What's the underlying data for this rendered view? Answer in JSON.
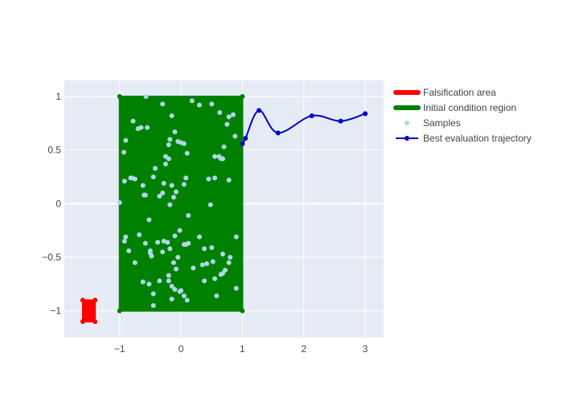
{
  "chart_data": {
    "type": "scatter",
    "xlim": [
      -1.9,
      3.3
    ],
    "ylim": [
      -1.25,
      1.15
    ],
    "x_ticks": [
      -1,
      0,
      1,
      2,
      3
    ],
    "x_tick_labels": [
      "−1",
      "0",
      "1",
      "2",
      "3"
    ],
    "y_ticks": [
      -1,
      -0.5,
      0,
      0.5,
      1
    ],
    "y_tick_labels": [
      "−1",
      "−0.5",
      "0",
      "0.5",
      "1"
    ],
    "grid": true,
    "legend_position": "top-right",
    "colors": {
      "plot_bg": "#e5ecf6",
      "grid": "#ffffff",
      "falsification": "#ff0000",
      "initial": "#008000",
      "samples": "#add8e6",
      "trajectory": "#0000cd"
    },
    "legend": [
      {
        "label": "Falsification area",
        "kind": "region",
        "color": "#ff0000"
      },
      {
        "label": "Initial condition region",
        "kind": "region",
        "color": "#008000"
      },
      {
        "label": "Samples",
        "kind": "marker",
        "color": "#add8e6"
      },
      {
        "label": "Best evaluation trajectory",
        "kind": "line",
        "color": "#0000cd"
      }
    ],
    "falsification_area": {
      "x": [
        -1.6,
        -1.4,
        -1.4,
        -1.6,
        -1.6
      ],
      "y": [
        -1.1,
        -1.1,
        -0.9,
        -0.9,
        -1.1
      ]
    },
    "initial_region": {
      "x": [
        -1,
        1,
        1,
        -1,
        -1
      ],
      "y": [
        -1,
        -1,
        1,
        1,
        -1
      ]
    },
    "samples": {
      "x": [
        -0.57,
        0.18,
        -0.9,
        -0.78,
        -0.15,
        -0.3,
        0.3,
        0.5,
        0.63,
        0.85,
        0.78,
        -0.7,
        -0.65,
        -0.55,
        -0.82,
        -0.93,
        -0.18,
        -0.1,
        -0.05,
        0.0,
        0.05,
        0.1,
        -0.2,
        -0.25,
        0.55,
        0.7,
        0.75,
        0.65,
        -0.92,
        -0.8,
        -0.75,
        -0.6,
        -0.62,
        -0.45,
        -0.35,
        -0.28,
        -0.15,
        -0.08,
        0.08,
        0.55,
        0.78,
        -0.52,
        -0.18,
        -0.3,
        -0.42,
        -0.12,
        0.48,
        0.68,
        -0.58,
        0.05,
        0.12,
        -1.0,
        -0.2,
        -0.25,
        0.45,
        0.62,
        0.88,
        -0.92,
        -0.9,
        -0.68,
        -0.5,
        -0.28,
        -0.22,
        -0.1,
        -0.02,
        0.08,
        0.12,
        0.38,
        0.5,
        0.68,
        0.8,
        0.9,
        -0.85,
        -0.75,
        -0.5,
        -0.48,
        -0.3,
        -0.18,
        -0.12,
        -0.05,
        0.05,
        0.42,
        0.52,
        0.65,
        0.72,
        0.78,
        -0.62,
        -0.52,
        -0.45,
        -0.2,
        -0.15,
        -0.1,
        -0.02,
        0.1,
        0.38,
        0.55,
        0.68,
        -0.45,
        -0.15,
        0.0,
        -0.35,
        0.05,
        -0.08,
        0.2,
        0.35,
        0.58,
        -0.2,
        -0.38,
        -0.58,
        0.3,
        0.9
      ],
      "y": [
        1.0,
        0.96,
        0.59,
        0.77,
        0.82,
        0.93,
        0.92,
        0.93,
        0.85,
        0.83,
        0.81,
        0.7,
        0.71,
        0.71,
        0.24,
        0.48,
        0.6,
        0.67,
        0.58,
        0.57,
        0.56,
        0.47,
        0.55,
        0.44,
        0.44,
        0.53,
        0.74,
        0.42,
        0.21,
        0.24,
        0.23,
        0.08,
        0.17,
        0.25,
        0.07,
        0.19,
        0.17,
        0.11,
        0.24,
        0.24,
        0.22,
        -0.15,
        -0.01,
        0.1,
        0.33,
        0.06,
        -0.01,
        0.42,
        0.08,
        0.18,
        -0.11,
        0.01,
        0.42,
        0.37,
        0.23,
        0.44,
        0.63,
        -0.35,
        -0.31,
        -0.29,
        -0.46,
        -0.35,
        -0.36,
        -0.3,
        -0.25,
        -0.38,
        -0.37,
        -0.42,
        -0.41,
        -0.47,
        -0.5,
        -0.31,
        -0.44,
        -0.55,
        -0.44,
        -0.49,
        -0.45,
        -0.42,
        -0.55,
        -0.5,
        -0.38,
        -0.56,
        -0.54,
        -0.66,
        -0.62,
        -0.55,
        -0.73,
        -0.75,
        -0.84,
        -0.67,
        -0.77,
        -0.8,
        -0.82,
        -0.9,
        -0.72,
        -0.7,
        -0.65,
        -0.95,
        -0.89,
        -0.81,
        -0.72,
        -0.86,
        -0.61,
        -0.6,
        -0.57,
        -0.86,
        -0.72,
        -0.36,
        -0.37,
        -0.31,
        -0.79
      ],
      "color": "#add8e6"
    },
    "trajectory": {
      "x": [
        1.0,
        1.05,
        1.27,
        1.58,
        2.13,
        2.6,
        3.0
      ],
      "y": [
        0.56,
        0.61,
        0.87,
        0.66,
        0.82,
        0.77,
        0.84
      ],
      "color": "#0000cd"
    }
  }
}
